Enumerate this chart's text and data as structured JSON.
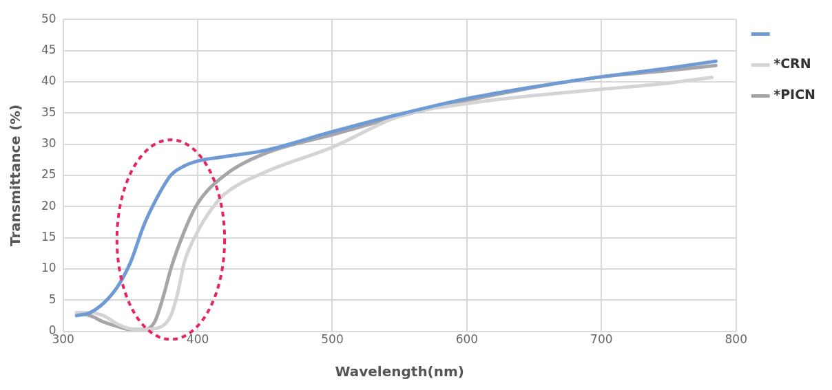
{
  "chart_data": {
    "type": "line",
    "xlabel": "Wavelength(nm)",
    "ylabel": "Transmittance (%)",
    "xlim": [
      300,
      800
    ],
    "xticks": [
      300,
      400,
      500,
      600,
      700,
      800
    ],
    "ylim": [
      0,
      50
    ],
    "yticks": [
      0,
      5,
      10,
      15,
      20,
      25,
      30,
      35,
      40,
      45,
      50
    ],
    "grid": true,
    "legend": "top right",
    "marker": "none",
    "line_style": "solid",
    "series": [
      {
        "color": "#6e9bd6",
        "x": [
          310,
          320,
          330,
          340,
          350,
          360,
          370,
          380,
          390,
          400,
          420,
          450,
          500,
          550,
          600,
          650,
          700,
          750,
          785
        ],
        "values": [
          2.5,
          3,
          4.5,
          7,
          11,
          17,
          21.5,
          25,
          26.5,
          27.3,
          28,
          29,
          32,
          34.8,
          37.3,
          39.2,
          40.8,
          42.2,
          43.3
        ]
      },
      {
        "name": "*CRN",
        "color": "#d4d4d4",
        "x": [
          310,
          320,
          330,
          340,
          350,
          360,
          370,
          380,
          385,
          390,
          400,
          410,
          420,
          450,
          500,
          550,
          600,
          650,
          700,
          750,
          782
        ],
        "values": [
          3,
          3,
          2.5,
          1.2,
          0.4,
          0.3,
          0.5,
          2.5,
          6,
          11,
          16,
          19.5,
          22,
          25.5,
          29.5,
          34.5,
          36.5,
          37.8,
          38.8,
          39.8,
          40.7
        ]
      },
      {
        "name": "*PICN",
        "color": "#a5a5aa",
        "x": [
          310,
          320,
          330,
          340,
          350,
          360,
          368,
          375,
          380,
          390,
          400,
          420,
          450,
          500,
          550,
          600,
          650,
          700,
          750,
          785
        ],
        "values": [
          2.8,
          2.5,
          1.5,
          0.8,
          0.3,
          0.3,
          1.5,
          6,
          10,
          16,
          20.5,
          25,
          28.5,
          31.5,
          34.5,
          37,
          39.1,
          40.8,
          41.8,
          42.6
        ]
      }
    ]
  }
}
